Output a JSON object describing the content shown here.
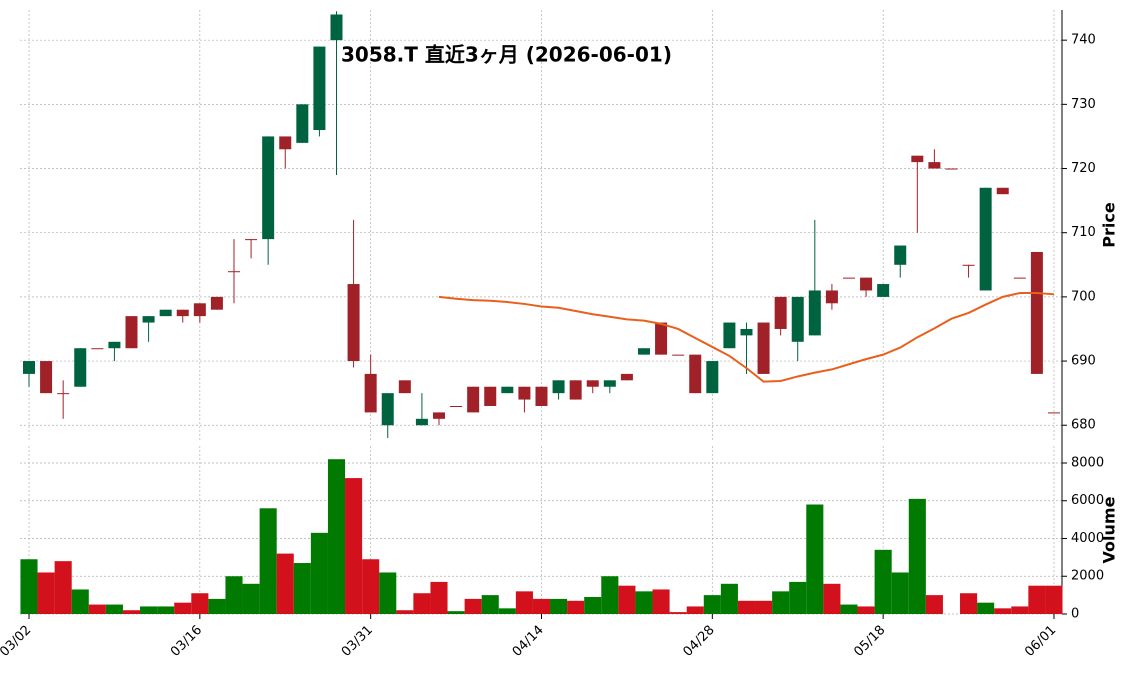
{
  "chart_data": {
    "type": "candlestick",
    "title": "3058.T  直近3ヶ月  (2026-06-01)",
    "categories": [
      "03/02",
      null,
      null,
      null,
      null,
      null,
      null,
      null,
      null,
      null,
      "03/16",
      null,
      null,
      null,
      null,
      null,
      null,
      null,
      null,
      null,
      "03/31",
      null,
      null,
      null,
      null,
      null,
      null,
      null,
      null,
      null,
      "04/14",
      null,
      null,
      null,
      null,
      null,
      null,
      null,
      null,
      null,
      "04/28",
      null,
      null,
      null,
      null,
      null,
      null,
      null,
      null,
      null,
      "05/18",
      null,
      null,
      null,
      null,
      null,
      null,
      null,
      null,
      null,
      "06/01"
    ],
    "open": [
      688,
      690,
      685,
      686,
      692,
      692,
      697,
      696,
      697,
      698,
      699,
      700,
      704,
      709,
      709,
      725,
      724,
      726,
      740,
      702,
      688,
      680,
      687,
      680,
      682,
      683,
      686,
      686,
      685,
      686,
      686,
      685,
      687,
      687,
      686,
      688,
      691,
      696,
      691,
      691,
      685,
      692,
      694,
      696,
      700,
      693,
      694,
      701,
      703,
      703,
      700,
      705,
      722,
      721,
      720,
      705,
      701,
      717,
      703,
      707,
      682
    ],
    "high": [
      690,
      690,
      687,
      692,
      692,
      693,
      697,
      697,
      698,
      698,
      699,
      700,
      709,
      709,
      725,
      725,
      730,
      739,
      744.5,
      712,
      691,
      685,
      687,
      685,
      682,
      683,
      686,
      686,
      686,
      686,
      686,
      687,
      687,
      687,
      687,
      688,
      692,
      696,
      691,
      691,
      690,
      696,
      696,
      696,
      700,
      700,
      712,
      702,
      703,
      703,
      702,
      708,
      722,
      723,
      720,
      705,
      717,
      717,
      703,
      707,
      682
    ],
    "low": [
      686,
      685,
      681,
      686,
      692,
      690,
      692,
      693,
      697,
      696,
      696,
      698,
      699,
      706,
      705,
      720,
      724,
      725,
      719,
      689,
      682,
      678,
      685,
      680,
      680,
      683,
      682,
      683,
      685,
      682,
      683,
      684,
      684,
      685,
      685,
      687,
      691,
      691,
      691,
      685,
      685,
      692,
      688,
      688,
      694,
      690,
      694,
      698,
      703,
      700,
      700,
      703,
      710,
      720,
      720,
      703,
      701,
      716,
      703,
      688,
      682
    ],
    "close": [
      690,
      685,
      685,
      692,
      692,
      693,
      692,
      697,
      698,
      697,
      697,
      698,
      704,
      709,
      725,
      723,
      730,
      739,
      744,
      690,
      682,
      685,
      685,
      681,
      681,
      683,
      682,
      683,
      686,
      684,
      683,
      687,
      684,
      686,
      687,
      687,
      692,
      691,
      691,
      685,
      690,
      696,
      695,
      688,
      695,
      700,
      701,
      699,
      703,
      701,
      702,
      708,
      721,
      720,
      720,
      705,
      717,
      716,
      703,
      688,
      682
    ],
    "up_color": "#006340",
    "down_color": "#a02128",
    "ylim": [
      677.7,
      744.7
    ],
    "yticks": [
      680,
      690,
      700,
      710,
      720,
      730,
      740
    ],
    "ylabel": "Price",
    "grid": true,
    "moving_average": {
      "color": "#e8601c",
      "values": [
        null,
        null,
        null,
        null,
        null,
        null,
        null,
        null,
        null,
        null,
        null,
        null,
        null,
        null,
        null,
        null,
        null,
        null,
        null,
        null,
        null,
        null,
        null,
        null,
        700,
        699.7,
        699.5,
        699.4,
        699.2,
        698.9,
        698.5,
        698.3,
        697.8,
        697.3,
        696.9,
        696.5,
        696.3,
        695.8,
        695.0,
        693.6,
        692.2,
        690.8,
        688.9,
        686.8,
        686.9,
        687.6,
        688.2,
        688.7,
        689.5,
        690.3,
        691.0,
        692.1,
        693.7,
        695.1,
        696.6,
        697.5,
        698.8,
        700.0,
        700.6,
        700.6,
        700.4
      ]
    },
    "volume": {
      "values": [
        2900,
        2200,
        2800,
        1300,
        500,
        500,
        200,
        400,
        400,
        600,
        1100,
        800,
        2000,
        1600,
        5600,
        3200,
        2700,
        4300,
        8200,
        7200,
        2900,
        2200,
        200,
        1100,
        1700,
        150,
        800,
        1000,
        300,
        1200,
        800,
        800,
        700,
        900,
        2000,
        1500,
        1200,
        1300,
        100,
        400,
        1000,
        1600,
        700,
        700,
        1200,
        1700,
        5800,
        1600,
        500,
        400,
        3400,
        2200,
        6100,
        1000,
        0,
        1100,
        600,
        300,
        400,
        1500,
        1500
      ],
      "up_color": "#007a00",
      "down_color": "#d3111c",
      "ylim": [
        0,
        8900
      ],
      "yticks": [
        0,
        2000,
        4000,
        6000,
        8000
      ],
      "ylabel": "Volume"
    }
  }
}
